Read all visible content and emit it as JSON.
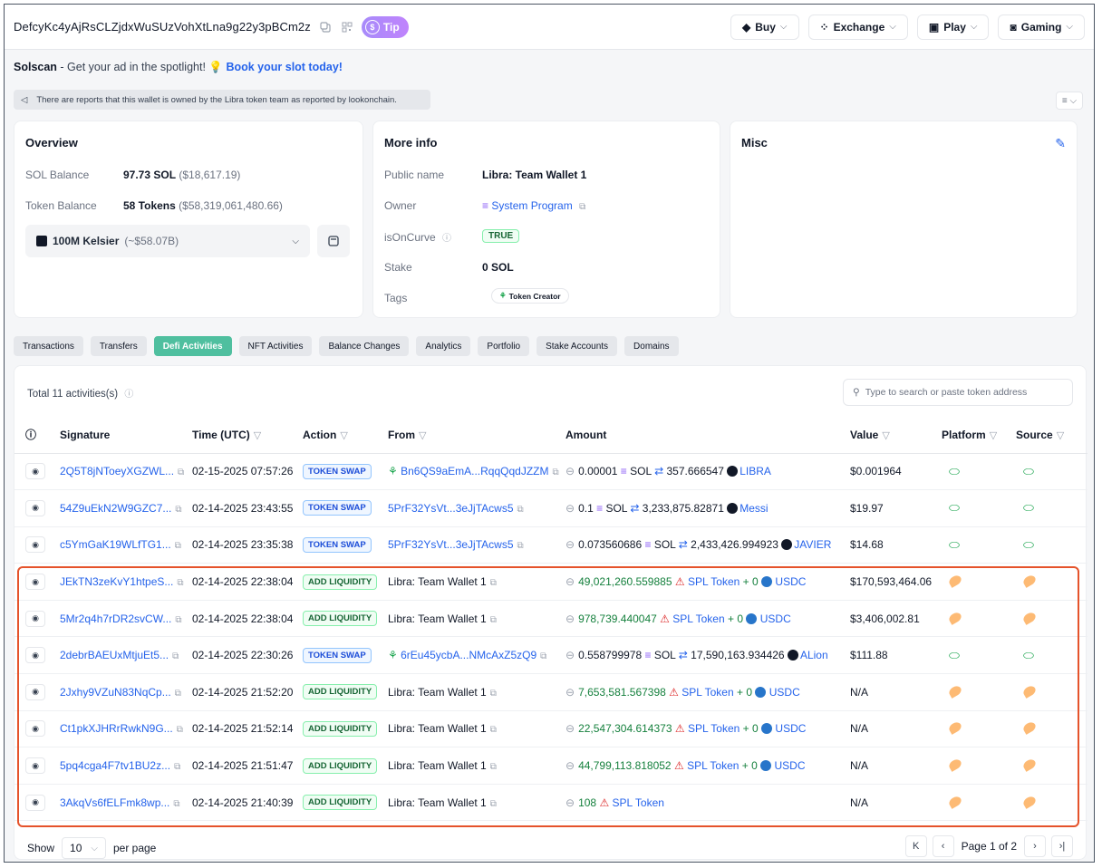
{
  "header": {
    "address": "DefcyKc4yAjRsCLZjdxWuSUzVohXtLna9g22y3pBCm2z",
    "tip_label": "Tip",
    "nav": [
      {
        "label": "Buy",
        "icon": "buy-icon"
      },
      {
        "label": "Exchange",
        "icon": "exchange-icon"
      },
      {
        "label": "Play",
        "icon": "play-icon"
      },
      {
        "label": "Gaming",
        "icon": "gaming-icon"
      }
    ]
  },
  "ad": {
    "brand": "Solscan",
    "text": " - Get your ad in the spotlight! ",
    "emoji": "💡",
    "link": "Book your slot today!"
  },
  "notice": "There are reports that this wallet is owned by the Libra token team as reported by lookonchain.",
  "overview": {
    "title": "Overview",
    "sol_label": "SOL Balance",
    "sol_value": "97.73 SOL",
    "sol_usd": "($18,617.19)",
    "token_label": "Token Balance",
    "token_value": "58 Tokens",
    "token_usd": "($58,319,061,480.66)",
    "selected_token": "100M Kelsier",
    "selected_token_usd": "(~$58.07B)"
  },
  "more_info": {
    "title": "More info",
    "public_name_label": "Public name",
    "public_name": "Libra: Team Wallet 1",
    "owner_label": "Owner",
    "owner": "System Program",
    "oncurve_label": "isOnCurve",
    "oncurve": "TRUE",
    "stake_label": "Stake",
    "stake": "0 SOL",
    "tags_label": "Tags",
    "tag": "Token Creator"
  },
  "misc": {
    "title": "Misc"
  },
  "tabs": [
    "Transactions",
    "Transfers",
    "Defi Activities",
    "NFT Activities",
    "Balance Changes",
    "Analytics",
    "Portfolio",
    "Stake Accounts",
    "Domains"
  ],
  "active_tab": 2,
  "table": {
    "total": "Total 11 activities(s)",
    "search_placeholder": "Type to search or paste token address",
    "columns": [
      "Signature",
      "Time (UTC)",
      "Action",
      "From",
      "Amount",
      "Value",
      "Platform",
      "Source"
    ],
    "rows": [
      {
        "sig": "2Q5T8jNToeyXGZWL...",
        "time": "02-15-2025 07:57:26",
        "action": "TOKEN SWAP",
        "type": "swap",
        "from": "Bn6QS9aEmA...RqqQqdJZZM",
        "from_link": true,
        "from_icon": true,
        "amt1": "0.00001",
        "tok1": "SOL",
        "amt2": "357.666547",
        "tok2": "LIBRA",
        "value": "$0.001964",
        "plat": "green"
      },
      {
        "sig": "54Z9uEkN2W9GZC7...",
        "time": "02-14-2025 23:43:55",
        "action": "TOKEN SWAP",
        "type": "swap",
        "from": "5PrF32YsVt...3eJjTAcws5",
        "from_link": true,
        "from_icon": false,
        "amt1": "0.1",
        "tok1": "SOL",
        "amt2": "3,233,875.82871",
        "tok2": "Messi",
        "value": "$19.97",
        "plat": "green"
      },
      {
        "sig": "c5YmGaK19WLfTG1...",
        "time": "02-14-2025 23:35:38",
        "action": "TOKEN SWAP",
        "type": "swap",
        "from": "5PrF32YsVt...3eJjTAcws5",
        "from_link": true,
        "from_icon": false,
        "amt1": "0.073560686",
        "tok1": "SOL",
        "amt2": "2,433,426.994923",
        "tok2": "JAVIER",
        "value": "$14.68",
        "plat": "green"
      },
      {
        "sig": "JEkTN3zeKvY1htpeS...",
        "time": "02-14-2025 22:38:04",
        "action": "ADD LIQUIDITY",
        "type": "liq",
        "from": "Libra: Team Wallet 1",
        "from_link": false,
        "from_icon": false,
        "amt1": "49,021,260.559885",
        "tok1": "SPL Token",
        "amt2": "0",
        "tok2": "USDC",
        "value": "$170,593,464.06",
        "plat": "orange"
      },
      {
        "sig": "5Mr2q4h7rDR2svCW...",
        "time": "02-14-2025 22:38:04",
        "action": "ADD LIQUIDITY",
        "type": "liq",
        "from": "Libra: Team Wallet 1",
        "from_link": false,
        "from_icon": false,
        "amt1": "978,739.440047",
        "tok1": "SPL Token",
        "amt2": "0",
        "tok2": "USDC",
        "value": "$3,406,002.81",
        "plat": "orange"
      },
      {
        "sig": "2debrBAEUxMtjuEt5...",
        "time": "02-14-2025 22:30:26",
        "action": "TOKEN SWAP",
        "type": "swap",
        "from": "6rEu45ycbA...NMcAxZ5zQ9",
        "from_link": true,
        "from_icon": true,
        "amt1": "0.558799978",
        "tok1": "SOL",
        "amt2": "17,590,163.934426",
        "tok2": "ALion",
        "value": "$111.88",
        "plat": "green"
      },
      {
        "sig": "2Jxhy9VZuN83NqCp...",
        "time": "02-14-2025 21:52:20",
        "action": "ADD LIQUIDITY",
        "type": "liq",
        "from": "Libra: Team Wallet 1",
        "from_link": false,
        "from_icon": false,
        "amt1": "7,653,581.567398",
        "tok1": "SPL Token",
        "amt2": "0",
        "tok2": "USDC",
        "value": "N/A",
        "plat": "orange"
      },
      {
        "sig": "Ct1pkXJHRrRwkN9G...",
        "time": "02-14-2025 21:52:14",
        "action": "ADD LIQUIDITY",
        "type": "liq",
        "from": "Libra: Team Wallet 1",
        "from_link": false,
        "from_icon": false,
        "amt1": "22,547,304.614373",
        "tok1": "SPL Token",
        "amt2": "0",
        "tok2": "USDC",
        "value": "N/A",
        "plat": "orange"
      },
      {
        "sig": "5pq4cga4F7tv1BU2z...",
        "time": "02-14-2025 21:51:47",
        "action": "ADD LIQUIDITY",
        "type": "liq",
        "from": "Libra: Team Wallet 1",
        "from_link": false,
        "from_icon": false,
        "amt1": "44,799,113.818052",
        "tok1": "SPL Token",
        "amt2": "0",
        "tok2": "USDC",
        "value": "N/A",
        "plat": "orange"
      },
      {
        "sig": "3AkqVs6fELFmk8wp...",
        "time": "02-14-2025 21:40:39",
        "action": "ADD LIQUIDITY",
        "type": "liq",
        "from": "Libra: Team Wallet 1",
        "from_link": false,
        "from_icon": false,
        "amt1": "108",
        "tok1": "SPL Token",
        "amt2": "",
        "tok2": "",
        "value": "N/A",
        "plat": "orange"
      }
    ]
  },
  "footer": {
    "show": "Show",
    "per_page_value": "10",
    "per_page": "per page",
    "page_text": "Page 1 of 2"
  },
  "colors": {
    "accent_green": "#4fbf9f",
    "link_blue": "#2563eb",
    "highlight": "#e5532b"
  }
}
